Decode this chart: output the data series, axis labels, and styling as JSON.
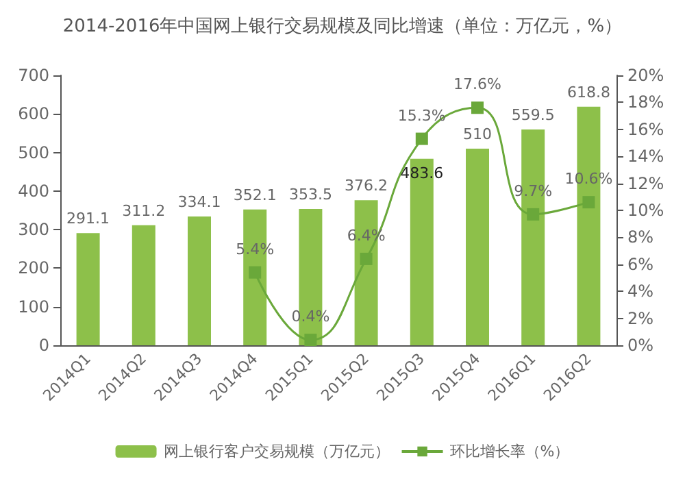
{
  "chart_data": {
    "type": "bar",
    "title": "2014-2016年中国网上银行交易规模及同比增速（单位：万亿元，%）",
    "categories": [
      "2014Q1",
      "2014Q2",
      "2014Q3",
      "2014Q4",
      "2015Q1",
      "2015Q2",
      "2015Q3",
      "2015Q4",
      "2016Q1",
      "2016Q2"
    ],
    "series": [
      {
        "name": "网上银行客户交易规模（万亿元）",
        "color": "#8dc04a",
        "values": [
          291.1,
          311.2,
          334.1,
          352.1,
          353.5,
          376.2,
          483.6,
          510,
          559.5,
          618.8
        ],
        "value_labels": [
          "291.1",
          "311.2",
          "334.1",
          "352.1",
          "353.5",
          "376.2",
          "483.6",
          "510",
          "559.5",
          "618.8"
        ]
      },
      {
        "name": "环比增长率（%）",
        "type": "line",
        "axis": "y2",
        "color": "#6aa83a",
        "values": [
          null,
          null,
          null,
          5.4,
          0.4,
          6.4,
          15.3,
          17.6,
          9.7,
          10.6
        ],
        "value_labels": [
          null,
          null,
          null,
          "5.4%",
          "0.4%",
          "6.4%",
          "15.3%",
          "17.6%",
          "9.7%",
          "10.6%"
        ]
      }
    ],
    "ylim": [
      0,
      700
    ],
    "yticks": [
      0,
      100,
      200,
      300,
      400,
      500,
      600,
      700
    ],
    "y2lim": [
      0,
      20
    ],
    "y2ticks": [
      {
        "value": 0,
        "label": "0%"
      },
      {
        "value": 2,
        "label": "2%"
      },
      {
        "value": 4,
        "label": "4%"
      },
      {
        "value": 6,
        "label": "6%"
      },
      {
        "value": 8,
        "label": "8%"
      },
      {
        "value": 10,
        "label": "10%"
      },
      {
        "value": 12,
        "label": "12%"
      },
      {
        "value": 14,
        "label": "14%"
      },
      {
        "value": 16,
        "label": "16%"
      },
      {
        "value": 18,
        "label": "18%"
      },
      {
        "value": 20,
        "label": "20%"
      }
    ],
    "marker": "square",
    "legend": "bottom",
    "grid": false
  }
}
